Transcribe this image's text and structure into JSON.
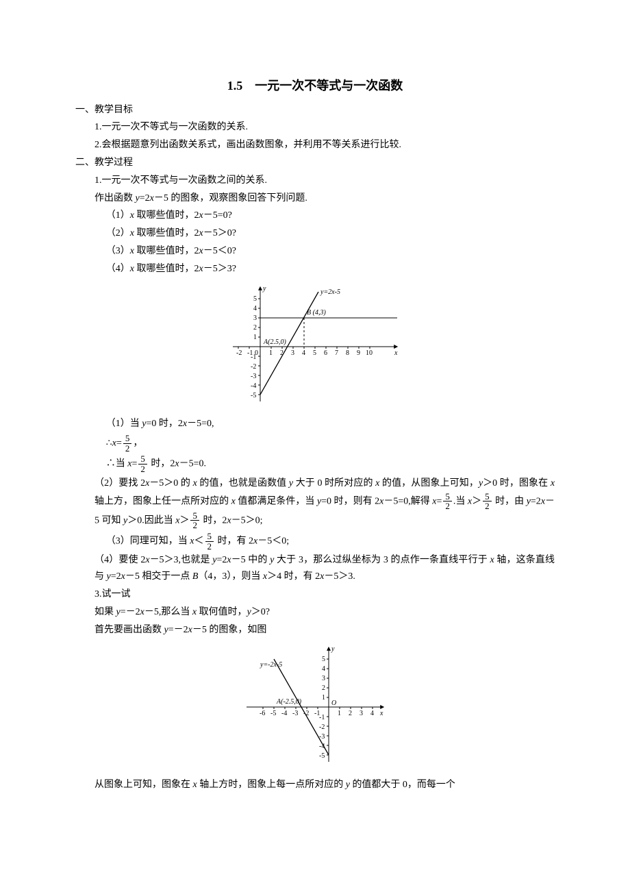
{
  "title": "1.5　一元一次不等式与一次函数",
  "sec1_heading": "一、教学目标",
  "sec1_item1": "1.一元一次不等式与一次函数的关系.",
  "sec1_item2": "2.会根据题意列出函数关系式，画出函数图象，并利用不等关系进行比较.",
  "sec2_heading": "二、教学过程",
  "sec2_item1": "1.一元一次不等式与一次函数之间的关系.",
  "prompt_line": "作出函数 <i>y</i>=2<i>x</i>－5 的图象，观察图象回答下列问题.",
  "q1": "（1）<i>x</i> 取哪些值时，2<i>x</i>－5=0?",
  "q2": "（2）<i>x</i> 取哪些值时，2<i>x</i>－5＞0?",
  "q3": "（3）<i>x</i> 取哪些值时，2<i>x</i>－5＜0?",
  "q4": "（4）<i>x</i> 取哪些值时，2<i>x</i>－5＞3?",
  "a1_l1": "（1）当 <i>y</i>=0 时，2<i>x</i>－5=0,",
  "a1_l2_prefix": "∴<i>x</i>=",
  "a1_l2_suffix": "，",
  "a1_l3_prefix": "∴当 <i>x</i>=",
  "a1_l3_suffix": " 时，2<i>x</i>－5=0.",
  "a2": "（2）要找 2<i>x</i>－5＞0 的 <i>x</i> 的值，也就是函数值 <i>y</i> 大于 0 时所对应的 <i>x</i> 的值，从图象上可知，<i>y</i>＞0 时，图象在 <i>x</i> 轴上方，图象上任一点所对应的 <i>x</i> 值都满足条件，当 <i>y</i>=0 时，则有 2<i>x</i>－5=0,解得 <i>x</i>=",
  "a2_mid1": ".当 <i>x</i>＞",
  "a2_mid2": " 时，由 <i>y</i>=2<i>x</i>－5 可知 <i>y</i>＞0.因此当 <i>x</i>＞",
  "a2_end": " 时，2<i>x</i>－5＞0;",
  "a3_pre": "（3）同理可知，当 <i>x</i>＜",
  "a3_post": " 时，有 2<i>x</i>－5＜0;",
  "a4": "（4）要使 2<i>x</i>－5＞3,也就是 <i>y</i>=2<i>x</i>－5 中的 <i>y</i> 大于 3，那么过纵坐标为 3 的点作一条直线平行于 <i>x</i> 轴，这条直线与 <i>y</i>=2<i>x</i>－5 相交于一点 <i>B</i>（4，3），则当 <i>x</i>＞4 时，有 2<i>x</i>－5＞3.",
  "try_heading": "3.试一试",
  "try_q": "如果 <i>y</i>=－2<i>x</i>－5,那么当 <i>x</i> 取何值时，<i>y</i>＞0?",
  "try_intro": "首先要画出函数 <i>y</i>=－2<i>x</i>－5 的图象，如图",
  "last_para": "从图象上可知，图象在 <i>x</i> 轴上方时，图象上每一点所对应的 <i>y</i> 的值都大于 0，而每一个",
  "chart1": {
    "type": "line",
    "x_range": [
      -2,
      10
    ],
    "y_range": [
      -5,
      5
    ],
    "x_ticks": [
      -2,
      -1,
      1,
      2,
      3,
      4,
      5,
      6,
      7,
      8,
      9,
      10
    ],
    "y_ticks": [
      -5,
      -4,
      -3,
      -2,
      -1,
      1,
      2,
      3,
      4,
      5
    ],
    "line_eq_label": "y=2x-5",
    "point_A": "A(2.5,0)",
    "point_B": "B (4,3)",
    "colors": {
      "axis": "#000000",
      "line": "#000000",
      "dash": "#000000",
      "bg": "#ffffff"
    }
  },
  "chart2": {
    "type": "line",
    "x_range": [
      -6,
      4
    ],
    "y_range": [
      -5,
      5
    ],
    "x_ticks": [
      -6,
      -5,
      -4,
      -3,
      -2,
      -1,
      1,
      2,
      3,
      4
    ],
    "y_ticks": [
      -5,
      -4,
      -3,
      -2,
      -1,
      1,
      2,
      3,
      4,
      5
    ],
    "line_eq_label": "y=-2x-5",
    "point_A": "A(-2.5,0)",
    "origin_label": "O",
    "colors": {
      "axis": "#000000",
      "line": "#000000",
      "bg": "#ffffff"
    }
  },
  "frac52_num": "5",
  "frac52_den": "2"
}
